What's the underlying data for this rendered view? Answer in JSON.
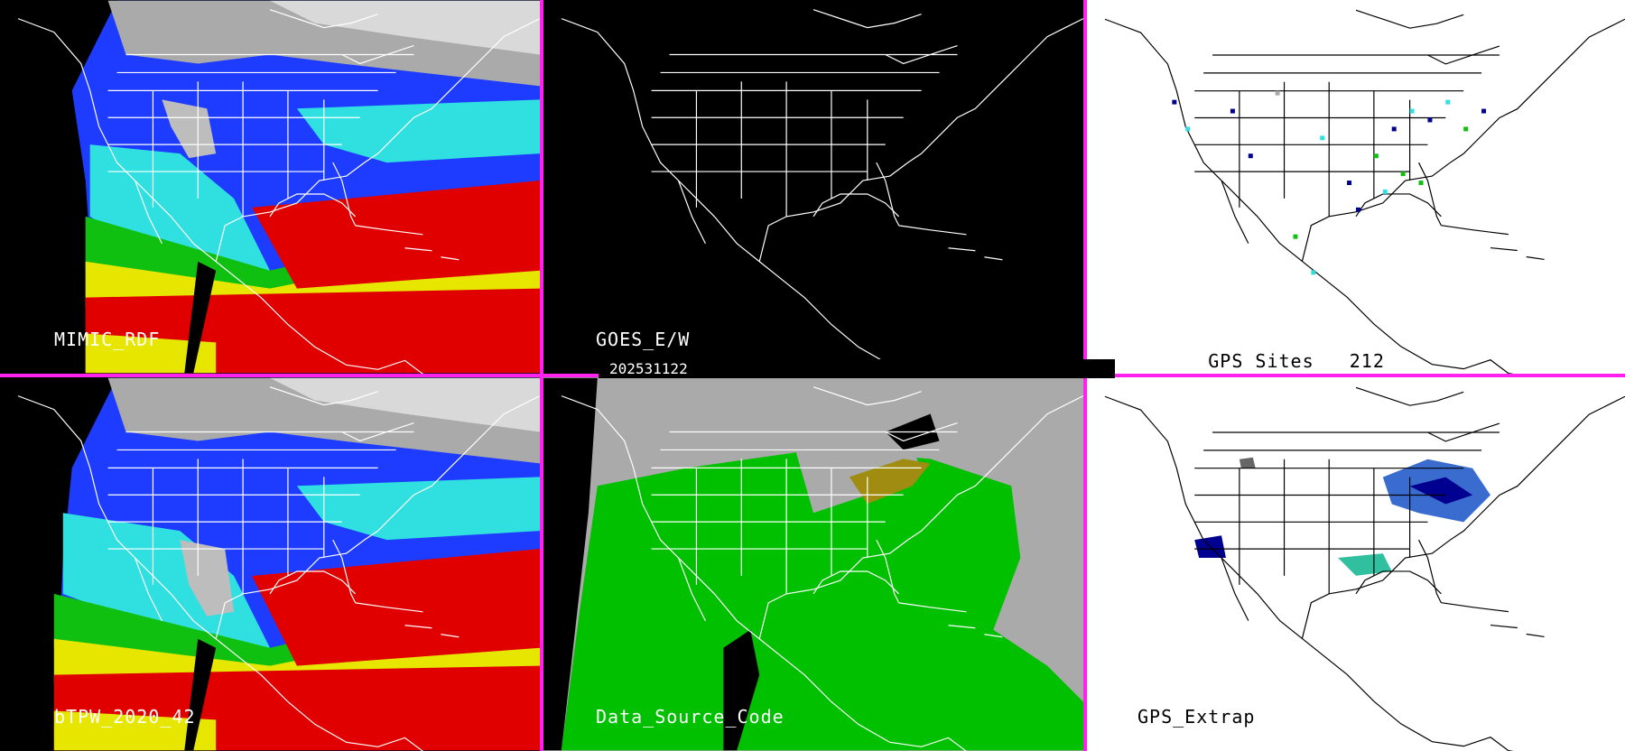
{
  "colors": {
    "divider": "#ff22ee",
    "land_green": "#00c000",
    "missing_gray": "#aaaaaa",
    "deep_blue": "#000090",
    "mid_blue": "#1e3cff",
    "cyan": "#30e0e0",
    "green": "#10c010",
    "yellow": "#e6e600",
    "red": "#e00000",
    "olive": "#a08c10"
  },
  "panels": [
    {
      "id": "mimic",
      "label": "MIMIC_RDF",
      "style": "tpw"
    },
    {
      "id": "goes",
      "label": "GOES_E/W",
      "style": "black"
    },
    {
      "id": "gps_sites",
      "label": "GPS Sites",
      "count": "212",
      "style": "white"
    },
    {
      "id": "btpw",
      "label": "bTPW_2020_42",
      "style": "tpw"
    },
    {
      "id": "dsc",
      "label": "Data_Source_Code",
      "style": "source"
    },
    {
      "id": "gps_extrap",
      "label": "GPS_Extrap",
      "style": "white"
    }
  ],
  "date_stamp": "202531122"
}
